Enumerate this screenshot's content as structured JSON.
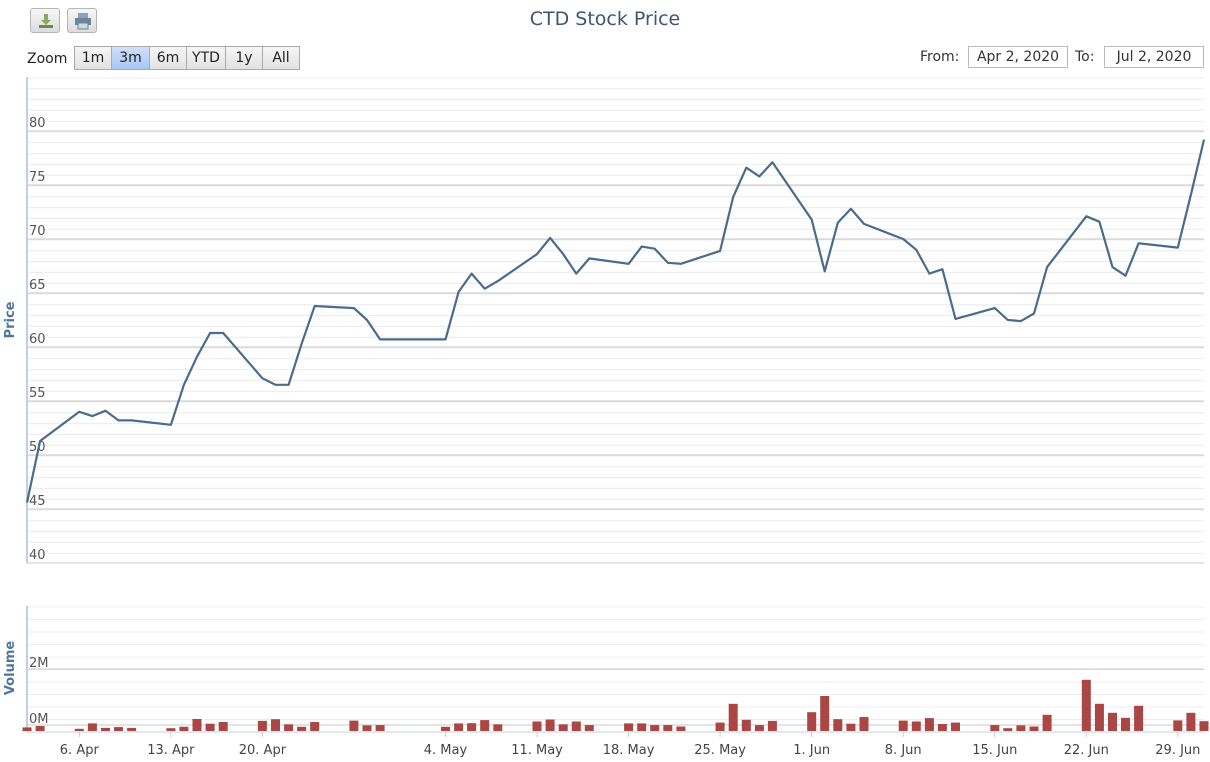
{
  "title": "CTD Stock Price",
  "toolbar": {
    "download_icon": "download-icon",
    "print_icon": "print-icon"
  },
  "zoom": {
    "label": "Zoom",
    "buttons": [
      "1m",
      "3m",
      "6m",
      "YTD",
      "1y",
      "All"
    ],
    "selected": "3m"
  },
  "range": {
    "from_label": "From:",
    "from_value": "Apr 2, 2020",
    "to_label": "To:",
    "to_value": "Jul 2, 2020"
  },
  "colors": {
    "line": "#4a6b8c",
    "bar": "#aa4643",
    "title": "#3e576f"
  },
  "chart_data": {
    "type": "line",
    "title": "CTD Stock Price",
    "x_ticks": [
      "6. Apr",
      "13. Apr",
      "20. Apr",
      "4. May",
      "11. May",
      "18. May",
      "25. May",
      "1. Jun",
      "8. Jun",
      "15. Jun",
      "22. Jun",
      "29. Jun"
    ],
    "x_tick_dates": [
      "2020-04-06",
      "2020-04-13",
      "2020-04-20",
      "2020-05-04",
      "2020-05-11",
      "2020-05-18",
      "2020-05-25",
      "2020-06-01",
      "2020-06-08",
      "2020-06-15",
      "2020-06-22",
      "2020-06-29"
    ],
    "price": {
      "ylabel": "Price",
      "ylim": [
        40,
        80
      ],
      "y_ticks": [
        40,
        45,
        50,
        55,
        60,
        65,
        70,
        75,
        80
      ],
      "points": [
        [
          "2020-04-02",
          45.6
        ],
        [
          "2020-04-03",
          51.3
        ],
        [
          "2020-04-06",
          54.0
        ],
        [
          "2020-04-07",
          53.6
        ],
        [
          "2020-04-08",
          54.1
        ],
        [
          "2020-04-09",
          53.2
        ],
        [
          "2020-04-10",
          53.2
        ],
        [
          "2020-04-13",
          52.8
        ],
        [
          "2020-04-14",
          56.5
        ],
        [
          "2020-04-15",
          59.1
        ],
        [
          "2020-04-16",
          61.3
        ],
        [
          "2020-04-17",
          61.3
        ],
        [
          "2020-04-20",
          57.1
        ],
        [
          "2020-04-21",
          56.5
        ],
        [
          "2020-04-22",
          56.5
        ],
        [
          "2020-04-23",
          60.3
        ],
        [
          "2020-04-24",
          63.8
        ],
        [
          "2020-04-27",
          63.6
        ],
        [
          "2020-04-28",
          62.5
        ],
        [
          "2020-04-29",
          60.7
        ],
        [
          "2020-05-04",
          60.7
        ],
        [
          "2020-05-05",
          65.1
        ],
        [
          "2020-05-06",
          66.8
        ],
        [
          "2020-05-07",
          65.4
        ],
        [
          "2020-05-08",
          66.1
        ],
        [
          "2020-05-11",
          68.6
        ],
        [
          "2020-05-12",
          70.1
        ],
        [
          "2020-05-13",
          68.6
        ],
        [
          "2020-05-14",
          66.8
        ],
        [
          "2020-05-15",
          68.2
        ],
        [
          "2020-05-18",
          67.7
        ],
        [
          "2020-05-19",
          69.3
        ],
        [
          "2020-05-20",
          69.1
        ],
        [
          "2020-05-21",
          67.8
        ],
        [
          "2020-05-22",
          67.7
        ],
        [
          "2020-05-25",
          68.9
        ],
        [
          "2020-05-26",
          73.9
        ],
        [
          "2020-05-27",
          76.6
        ],
        [
          "2020-05-28",
          75.8
        ],
        [
          "2020-05-29",
          77.1
        ],
        [
          "2020-06-01",
          71.8
        ],
        [
          "2020-06-02",
          67.0
        ],
        [
          "2020-06-03",
          71.5
        ],
        [
          "2020-06-04",
          72.8
        ],
        [
          "2020-06-05",
          71.4
        ],
        [
          "2020-06-08",
          70.0
        ],
        [
          "2020-06-09",
          69.0
        ],
        [
          "2020-06-10",
          66.8
        ],
        [
          "2020-06-11",
          67.2
        ],
        [
          "2020-06-12",
          62.6
        ],
        [
          "2020-06-15",
          63.6
        ],
        [
          "2020-06-16",
          62.5
        ],
        [
          "2020-06-17",
          62.4
        ],
        [
          "2020-06-18",
          63.1
        ],
        [
          "2020-06-19",
          67.4
        ],
        [
          "2020-06-22",
          72.1
        ],
        [
          "2020-06-23",
          71.6
        ],
        [
          "2020-06-24",
          67.4
        ],
        [
          "2020-06-25",
          66.6
        ],
        [
          "2020-06-26",
          69.6
        ],
        [
          "2020-06-29",
          69.2
        ],
        [
          "2020-06-30",
          74.1
        ],
        [
          "2020-07-01",
          79.2
        ]
      ]
    },
    "volume": {
      "ylabel": "Volume",
      "ylim": [
        0,
        2000000
      ],
      "y_ticks": [
        0,
        2000000
      ],
      "y_tick_labels": [
        "0M",
        "2M"
      ],
      "points": [
        [
          "2020-04-02",
          130000
        ],
        [
          "2020-04-03",
          180000
        ],
        [
          "2020-04-06",
          80000
        ],
        [
          "2020-04-07",
          270000
        ],
        [
          "2020-04-08",
          110000
        ],
        [
          "2020-04-09",
          140000
        ],
        [
          "2020-04-10",
          110000
        ],
        [
          "2020-04-13",
          100000
        ],
        [
          "2020-04-14",
          150000
        ],
        [
          "2020-04-15",
          430000
        ],
        [
          "2020-04-16",
          260000
        ],
        [
          "2020-04-17",
          320000
        ],
        [
          "2020-04-20",
          360000
        ],
        [
          "2020-04-21",
          420000
        ],
        [
          "2020-04-22",
          240000
        ],
        [
          "2020-04-23",
          150000
        ],
        [
          "2020-04-24",
          320000
        ],
        [
          "2020-04-27",
          370000
        ],
        [
          "2020-04-28",
          200000
        ],
        [
          "2020-04-29",
          210000
        ],
        [
          "2020-05-04",
          150000
        ],
        [
          "2020-05-05",
          270000
        ],
        [
          "2020-05-06",
          280000
        ],
        [
          "2020-05-07",
          390000
        ],
        [
          "2020-05-08",
          240000
        ],
        [
          "2020-05-11",
          340000
        ],
        [
          "2020-05-12",
          410000
        ],
        [
          "2020-05-13",
          240000
        ],
        [
          "2020-05-14",
          340000
        ],
        [
          "2020-05-15",
          210000
        ],
        [
          "2020-05-18",
          270000
        ],
        [
          "2020-05-19",
          270000
        ],
        [
          "2020-05-20",
          210000
        ],
        [
          "2020-05-21",
          210000
        ],
        [
          "2020-05-22",
          160000
        ],
        [
          "2020-05-25",
          300000
        ],
        [
          "2020-05-26",
          970000
        ],
        [
          "2020-05-27",
          400000
        ],
        [
          "2020-05-28",
          210000
        ],
        [
          "2020-05-29",
          360000
        ],
        [
          "2020-06-01",
          670000
        ],
        [
          "2020-06-02",
          1250000
        ],
        [
          "2020-06-03",
          420000
        ],
        [
          "2020-06-04",
          260000
        ],
        [
          "2020-06-05",
          500000
        ],
        [
          "2020-06-08",
          370000
        ],
        [
          "2020-06-09",
          340000
        ],
        [
          "2020-06-10",
          460000
        ],
        [
          "2020-06-11",
          250000
        ],
        [
          "2020-06-12",
          300000
        ],
        [
          "2020-06-15",
          210000
        ],
        [
          "2020-06-16",
          100000
        ],
        [
          "2020-06-17",
          200000
        ],
        [
          "2020-06-18",
          160000
        ],
        [
          "2020-06-19",
          580000
        ],
        [
          "2020-06-22",
          1830000
        ],
        [
          "2020-06-23",
          970000
        ],
        [
          "2020-06-24",
          650000
        ],
        [
          "2020-06-25",
          470000
        ],
        [
          "2020-06-26",
          900000
        ],
        [
          "2020-06-29",
          380000
        ],
        [
          "2020-06-30",
          650000
        ],
        [
          "2020-07-01",
          350000
        ]
      ]
    },
    "grid": true
  }
}
